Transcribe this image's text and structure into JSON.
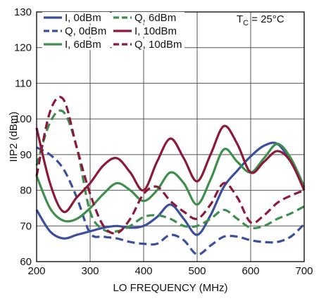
{
  "chart_data": {
    "type": "line",
    "xlabel": "LO FREQUENCY (MHz)",
    "ylabel": "IIP2 (dBm)",
    "xlim": [
      200,
      700
    ],
    "ylim": [
      60,
      130
    ],
    "x_ticks": [
      200,
      300,
      400,
      500,
      600,
      700
    ],
    "y_ticks": [
      60,
      70,
      80,
      90,
      100,
      110,
      120,
      130
    ],
    "x_tick_labels": [
      "200",
      "300",
      "400",
      "500",
      "600",
      "700"
    ],
    "y_tick_labels": [
      "60",
      "70",
      "80",
      "90",
      "100",
      "110",
      "120",
      "130"
    ],
    "grid": true,
    "legend_position": "top-left",
    "annotation": {
      "main": "T",
      "sub": "C",
      "rest": " = 25°C"
    },
    "series": [
      {
        "name": "I, 0dBm",
        "color": "#3a4f9e",
        "dash": "solid",
        "x": [
          200,
          225,
          250,
          275,
          300,
          325,
          350,
          375,
          400,
          425,
          450,
          475,
          500,
          525,
          550,
          575,
          600,
          625,
          650,
          675,
          700
        ],
        "y": [
          74.5,
          68.5,
          66.5,
          67.5,
          68.5,
          69.5,
          70,
          69.5,
          70,
          72.5,
          76,
          72,
          67.5,
          73,
          81,
          85.5,
          89.5,
          92.5,
          93,
          88,
          80.5
        ]
      },
      {
        "name": "Q, 0dBm",
        "color": "#3a4f9e",
        "dash": "dashed",
        "x": [
          200,
          225,
          250,
          275,
          300,
          325,
          350,
          375,
          400,
          425,
          450,
          475,
          500,
          525,
          550,
          575,
          600,
          625,
          650,
          675,
          700
        ],
        "y": [
          92,
          90,
          86,
          78,
          68,
          67,
          66.5,
          65.5,
          65,
          65,
          67.5,
          66,
          62,
          64.5,
          67,
          67,
          66,
          65.5,
          65.5,
          67,
          70.5
        ]
      },
      {
        "name": "I, 6dBm",
        "color": "#3f8f4c",
        "dash": "solid",
        "x": [
          200,
          225,
          250,
          275,
          300,
          325,
          350,
          375,
          400,
          425,
          450,
          475,
          500,
          525,
          550,
          575,
          600,
          625,
          650,
          675,
          700
        ],
        "y": [
          84,
          75,
          71.5,
          72,
          75,
          79,
          82,
          80,
          77,
          80,
          85,
          82,
          76,
          83,
          91.5,
          88,
          85,
          89,
          93,
          89,
          81
        ]
      },
      {
        "name": "Q, 6dBm",
        "color": "#3f8f4c",
        "dash": "dashed",
        "x": [
          200,
          225,
          250,
          275,
          300,
          325,
          350,
          375,
          400,
          425,
          450,
          475,
          500,
          525,
          550,
          575,
          600,
          625,
          650,
          675,
          700
        ],
        "y": [
          87,
          99,
          102,
          92,
          74,
          69,
          68.5,
          70,
          72.5,
          73,
          72,
          70,
          70,
          72,
          74.5,
          72,
          69.5,
          70,
          72,
          73.5,
          75.5
        ]
      },
      {
        "name": "I, 10dBm",
        "color": "#8b1a3a",
        "dash": "solid",
        "x": [
          200,
          225,
          250,
          275,
          300,
          325,
          350,
          375,
          400,
          425,
          450,
          475,
          500,
          525,
          550,
          575,
          600,
          625,
          650,
          675,
          700
        ],
        "y": [
          97.5,
          82,
          74,
          78,
          82,
          87,
          89,
          85,
          80,
          88,
          94.5,
          89,
          82.5,
          90,
          98,
          93,
          85,
          88,
          91,
          88,
          80
        ]
      },
      {
        "name": "Q, 10dBm",
        "color": "#8b1a3a",
        "dash": "dashed",
        "x": [
          200,
          225,
          250,
          275,
          300,
          325,
          350,
          375,
          400,
          425,
          450,
          475,
          500,
          525,
          550,
          575,
          600,
          625,
          650,
          675,
          700
        ],
        "y": [
          84,
          102,
          105.5,
          92,
          79,
          70,
          68,
          72,
          79,
          81,
          77,
          74,
          72,
          76,
          82,
          78,
          71,
          73,
          76.5,
          78.5,
          80
        ]
      }
    ]
  }
}
